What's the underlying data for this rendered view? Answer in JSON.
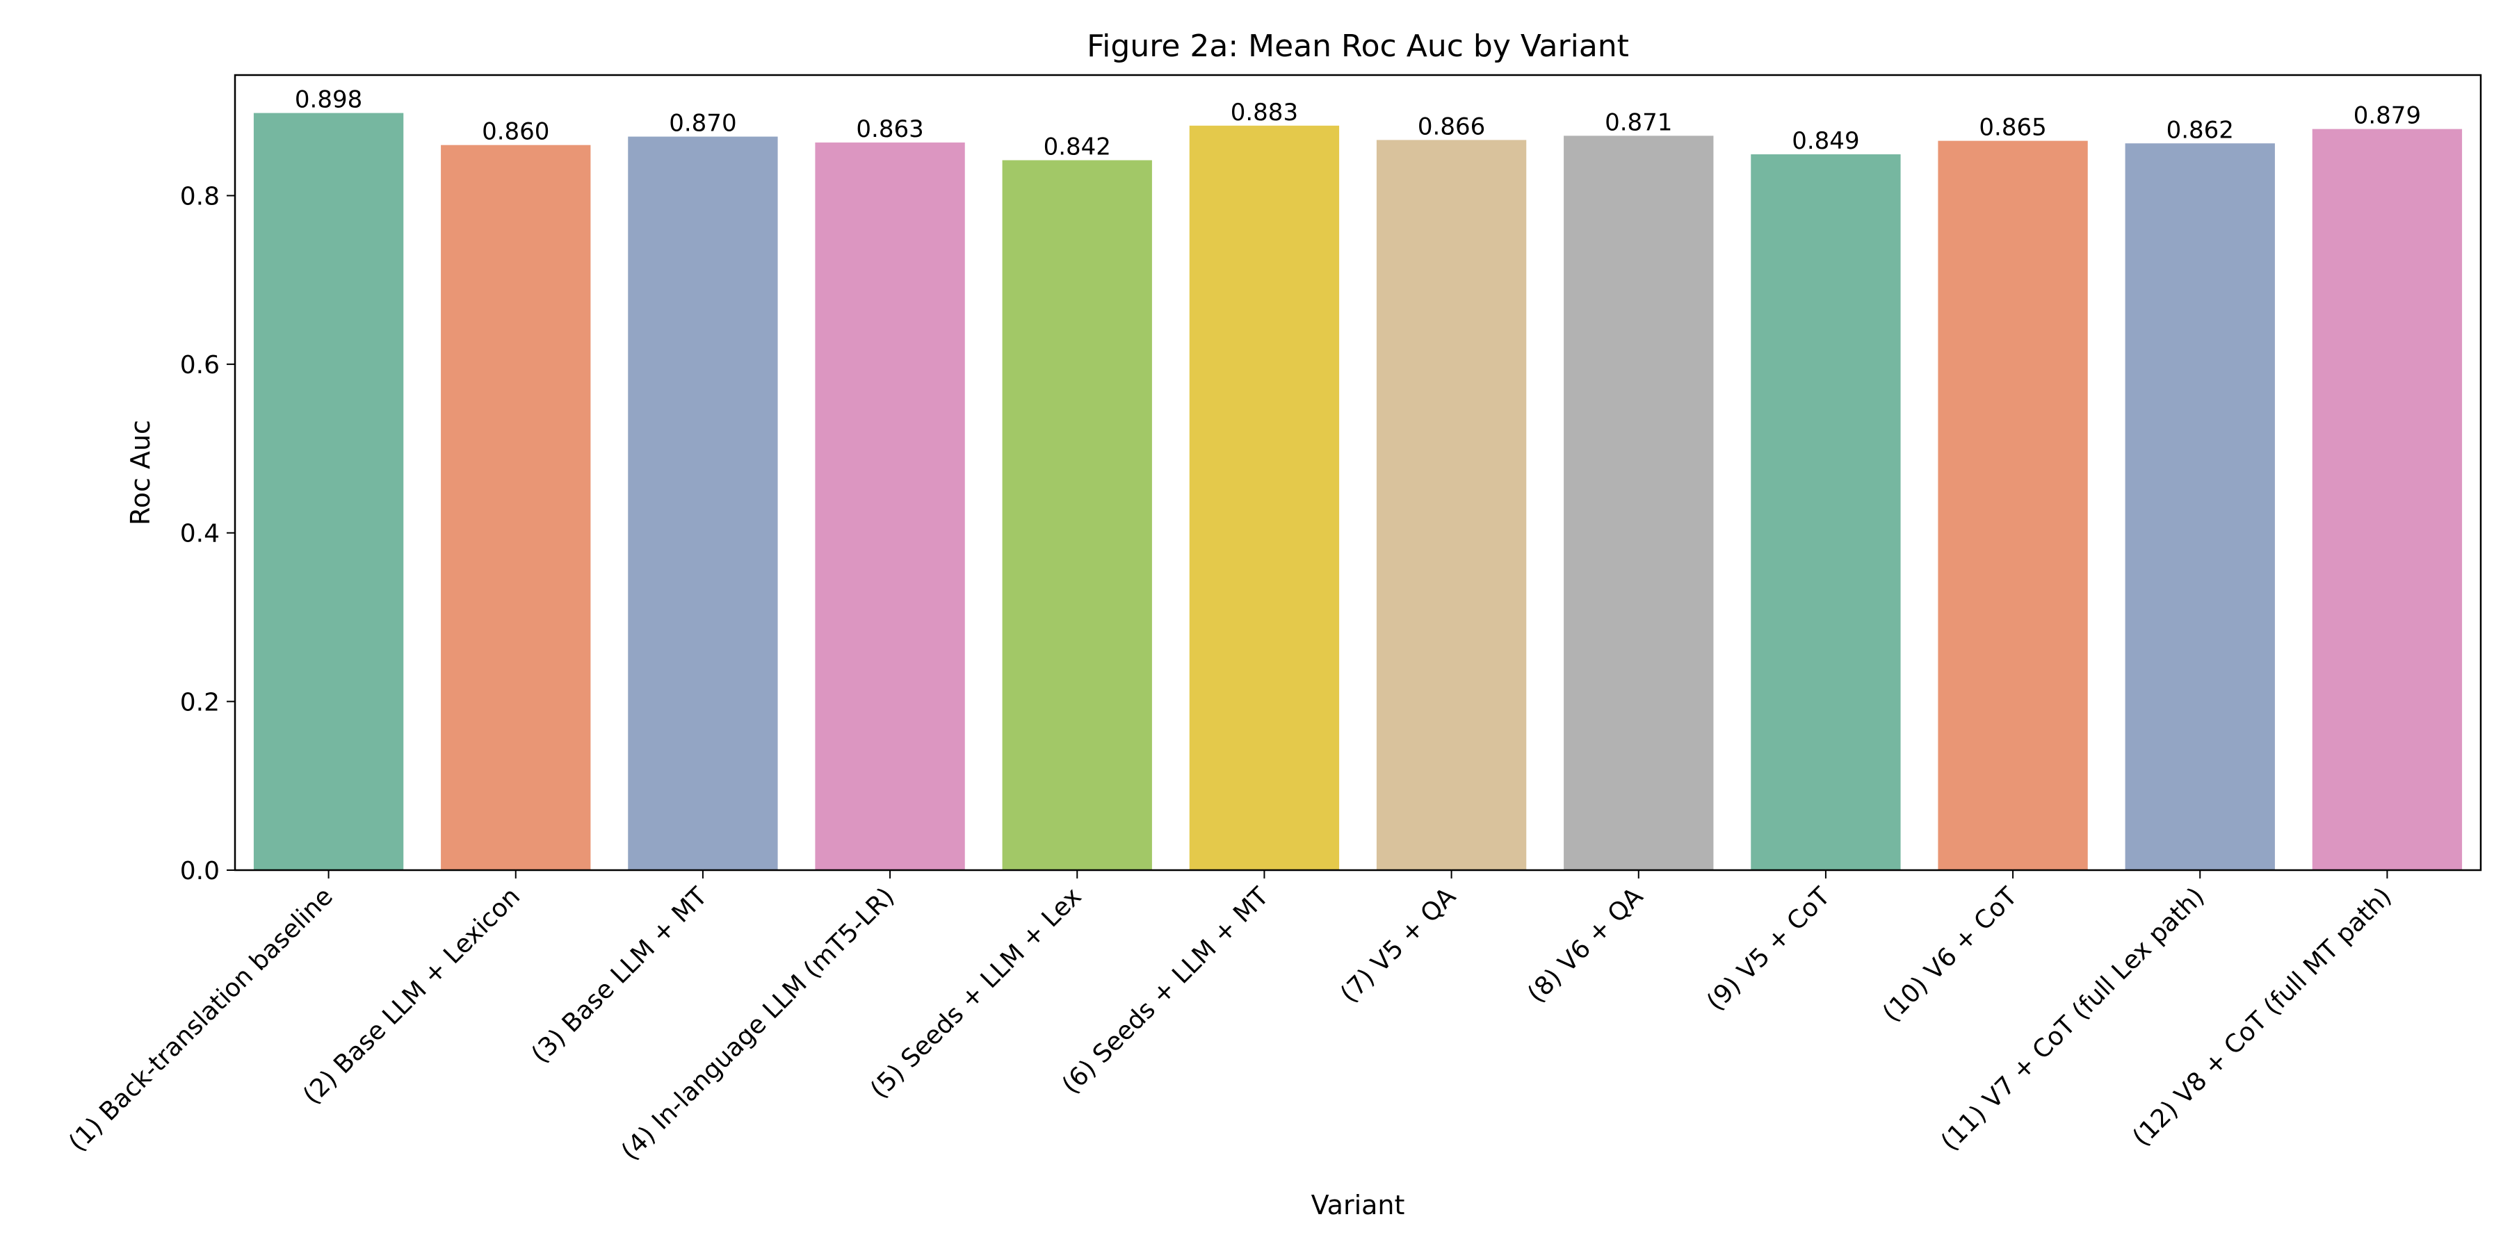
{
  "chart_data": {
    "type": "bar",
    "title": "Figure 2a: Mean Roc Auc by Variant",
    "xlabel": "Variant",
    "ylabel": "Roc Auc",
    "ylim": [
      0,
      0.943
    ],
    "yticks": [
      0.0,
      0.2,
      0.4,
      0.6,
      0.8
    ],
    "ytick_labels": [
      "0.0",
      "0.2",
      "0.4",
      "0.6",
      "0.8"
    ],
    "grid": false,
    "categories": [
      "(1) Back-translation baseline",
      "(2) Base LLM + Lexicon",
      "(3) Base LLM + MT",
      "(4) In-language LLM (mT5-LR)",
      "(5) Seeds + LLM + Lex",
      "(6) Seeds + LLM + MT",
      "(7) V5 + QA",
      "(8) V6 + QA",
      "(9) V5 + CoT",
      "(10) V6 + CoT",
      "(11) V7 + CoT (full Lex path)",
      "(12) V8 + CoT (full MT path)"
    ],
    "values": [
      0.898,
      0.86,
      0.87,
      0.863,
      0.842,
      0.883,
      0.866,
      0.871,
      0.849,
      0.865,
      0.862,
      0.879
    ],
    "value_labels": [
      "0.898",
      "0.860",
      "0.870",
      "0.863",
      "0.842",
      "0.883",
      "0.866",
      "0.871",
      "0.849",
      "0.865",
      "0.862",
      "0.879"
    ],
    "colors": [
      "#76b7a0",
      "#e99675",
      "#93a5c4",
      "#dc96c1",
      "#a2c867",
      "#e4c94b",
      "#d9c29c",
      "#b2b2b2",
      "#76b7a0",
      "#e99675",
      "#93a5c4",
      "#dc96c1"
    ]
  }
}
